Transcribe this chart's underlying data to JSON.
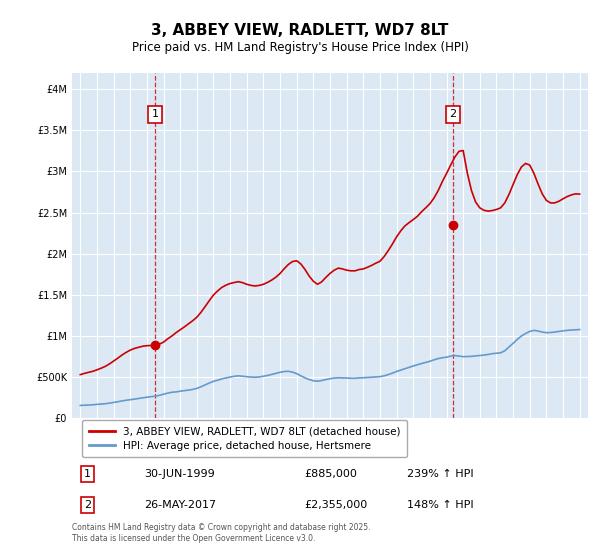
{
  "title": "3, ABBEY VIEW, RADLETT, WD7 8LT",
  "subtitle": "Price paid vs. HM Land Registry's House Price Index (HPI)",
  "bg_color": "#dce9f5",
  "plot_bg_color": "#dce9f5",
  "red_line_color": "#cc0000",
  "blue_line_color": "#6699cc",
  "ylabel_ticks": [
    "£0",
    "£500K",
    "£1M",
    "£1.5M",
    "£2M",
    "£2.5M",
    "£3M",
    "£3.5M",
    "£4M"
  ],
  "ylabel_values": [
    0,
    500000,
    1000000,
    1500000,
    2000000,
    2500000,
    3000000,
    3500000,
    4000000
  ],
  "xlim": [
    1994.5,
    2025.5
  ],
  "ylim": [
    0,
    4200000
  ],
  "marker1_x": 1999.5,
  "marker1_y": 885000,
  "marker1_label": "1",
  "marker2_x": 2017.4,
  "marker2_y": 2355000,
  "marker2_label": "2",
  "vline1_x": 1999.5,
  "vline2_x": 2017.4,
  "legend_entry1": "3, ABBEY VIEW, RADLETT, WD7 8LT (detached house)",
  "legend_entry2": "HPI: Average price, detached house, Hertsmere",
  "table_rows": [
    {
      "num": "1",
      "date": "30-JUN-1999",
      "price": "£885,000",
      "change": "239% ↑ HPI"
    },
    {
      "num": "2",
      "date": "26-MAY-2017",
      "price": "£2,355,000",
      "change": "148% ↑ HPI"
    }
  ],
  "footnote": "Contains HM Land Registry data © Crown copyright and database right 2025.\nThis data is licensed under the Open Government Licence v3.0.",
  "hpi_data_x": [
    1995.0,
    1995.25,
    1995.5,
    1995.75,
    1996.0,
    1996.25,
    1996.5,
    1996.75,
    1997.0,
    1997.25,
    1997.5,
    1997.75,
    1998.0,
    1998.25,
    1998.5,
    1998.75,
    1999.0,
    1999.25,
    1999.5,
    1999.75,
    2000.0,
    2000.25,
    2000.5,
    2000.75,
    2001.0,
    2001.25,
    2001.5,
    2001.75,
    2002.0,
    2002.25,
    2002.5,
    2002.75,
    2003.0,
    2003.25,
    2003.5,
    2003.75,
    2004.0,
    2004.25,
    2004.5,
    2004.75,
    2005.0,
    2005.25,
    2005.5,
    2005.75,
    2006.0,
    2006.25,
    2006.5,
    2006.75,
    2007.0,
    2007.25,
    2007.5,
    2007.75,
    2008.0,
    2008.25,
    2008.5,
    2008.75,
    2009.0,
    2009.25,
    2009.5,
    2009.75,
    2010.0,
    2010.25,
    2010.5,
    2010.75,
    2011.0,
    2011.25,
    2011.5,
    2011.75,
    2012.0,
    2012.25,
    2012.5,
    2012.75,
    2013.0,
    2013.25,
    2013.5,
    2013.75,
    2014.0,
    2014.25,
    2014.5,
    2014.75,
    2015.0,
    2015.25,
    2015.5,
    2015.75,
    2016.0,
    2016.25,
    2016.5,
    2016.75,
    2017.0,
    2017.25,
    2017.5,
    2017.75,
    2018.0,
    2018.25,
    2018.5,
    2018.75,
    2019.0,
    2019.25,
    2019.5,
    2019.75,
    2020.0,
    2020.25,
    2020.5,
    2020.75,
    2021.0,
    2021.25,
    2021.5,
    2021.75,
    2022.0,
    2022.25,
    2022.5,
    2022.75,
    2023.0,
    2023.25,
    2023.5,
    2023.75,
    2024.0,
    2024.25,
    2024.5,
    2024.75,
    2025.0
  ],
  "hpi_data_y": [
    155000,
    158000,
    160000,
    163000,
    168000,
    172000,
    176000,
    183000,
    192000,
    200000,
    210000,
    218000,
    225000,
    232000,
    240000,
    248000,
    255000,
    262000,
    268000,
    278000,
    292000,
    305000,
    315000,
    320000,
    328000,
    335000,
    342000,
    350000,
    362000,
    382000,
    405000,
    428000,
    448000,
    462000,
    478000,
    490000,
    500000,
    510000,
    515000,
    510000,
    505000,
    500000,
    498000,
    502000,
    510000,
    520000,
    532000,
    545000,
    558000,
    568000,
    570000,
    560000,
    542000,
    515000,
    490000,
    470000,
    455000,
    450000,
    458000,
    470000,
    480000,
    488000,
    492000,
    490000,
    488000,
    486000,
    485000,
    490000,
    492000,
    495000,
    498000,
    502000,
    505000,
    515000,
    530000,
    548000,
    568000,
    585000,
    602000,
    618000,
    635000,
    650000,
    665000,
    678000,
    692000,
    710000,
    725000,
    735000,
    742000,
    755000,
    762000,
    755000,
    748000,
    750000,
    752000,
    758000,
    762000,
    768000,
    775000,
    785000,
    790000,
    795000,
    820000,
    865000,
    910000,
    958000,
    1000000,
    1030000,
    1055000,
    1068000,
    1060000,
    1048000,
    1040000,
    1042000,
    1048000,
    1055000,
    1062000,
    1068000,
    1072000,
    1075000,
    1078000
  ],
  "price_data_x": [
    1995.0,
    1995.25,
    1995.5,
    1995.75,
    1996.0,
    1996.25,
    1996.5,
    1996.75,
    1997.0,
    1997.25,
    1997.5,
    1997.75,
    1998.0,
    1998.25,
    1998.5,
    1998.75,
    1999.0,
    1999.25,
    1999.5,
    1999.75,
    2000.0,
    2000.25,
    2000.5,
    2000.75,
    2001.0,
    2001.25,
    2001.5,
    2001.75,
    2002.0,
    2002.25,
    2002.5,
    2002.75,
    2003.0,
    2003.25,
    2003.5,
    2003.75,
    2004.0,
    2004.25,
    2004.5,
    2004.75,
    2005.0,
    2005.25,
    2005.5,
    2005.75,
    2006.0,
    2006.25,
    2006.5,
    2006.75,
    2007.0,
    2007.25,
    2007.5,
    2007.75,
    2008.0,
    2008.25,
    2008.5,
    2008.75,
    2009.0,
    2009.25,
    2009.5,
    2009.75,
    2010.0,
    2010.25,
    2010.5,
    2010.75,
    2011.0,
    2011.25,
    2011.5,
    2011.75,
    2012.0,
    2012.25,
    2012.5,
    2012.75,
    2013.0,
    2013.25,
    2013.5,
    2013.75,
    2014.0,
    2014.25,
    2014.5,
    2014.75,
    2015.0,
    2015.25,
    2015.5,
    2015.75,
    2016.0,
    2016.25,
    2016.5,
    2016.75,
    2017.0,
    2017.25,
    2017.5,
    2017.75,
    2018.0,
    2018.25,
    2018.5,
    2018.75,
    2019.0,
    2019.25,
    2019.5,
    2019.75,
    2020.0,
    2020.25,
    2020.5,
    2020.75,
    2021.0,
    2021.25,
    2021.5,
    2021.75,
    2022.0,
    2022.25,
    2022.5,
    2022.75,
    2023.0,
    2023.25,
    2023.5,
    2023.75,
    2024.0,
    2024.25,
    2024.5,
    2024.75,
    2025.0
  ],
  "price_data_y": [
    530000,
    545000,
    558000,
    570000,
    588000,
    608000,
    630000,
    660000,
    695000,
    730000,
    768000,
    800000,
    828000,
    848000,
    862000,
    875000,
    882000,
    884000,
    885000,
    900000,
    925000,
    965000,
    1000000,
    1040000,
    1075000,
    1110000,
    1148000,
    1185000,
    1228000,
    1288000,
    1358000,
    1430000,
    1498000,
    1548000,
    1590000,
    1618000,
    1638000,
    1650000,
    1660000,
    1648000,
    1628000,
    1615000,
    1608000,
    1615000,
    1628000,
    1652000,
    1680000,
    1715000,
    1760000,
    1818000,
    1870000,
    1905000,
    1915000,
    1875000,
    1808000,
    1728000,
    1665000,
    1628000,
    1658000,
    1712000,
    1760000,
    1800000,
    1825000,
    1815000,
    1800000,
    1792000,
    1792000,
    1808000,
    1815000,
    1835000,
    1858000,
    1885000,
    1908000,
    1965000,
    2038000,
    2118000,
    2205000,
    2278000,
    2338000,
    2378000,
    2415000,
    2455000,
    2510000,
    2558000,
    2608000,
    2678000,
    2768000,
    2878000,
    2975000,
    3078000,
    3175000,
    3245000,
    3255000,
    2980000,
    2768000,
    2628000,
    2558000,
    2528000,
    2518000,
    2525000,
    2538000,
    2558000,
    2618000,
    2720000,
    2842000,
    2962000,
    3055000,
    3098000,
    3078000,
    2978000,
    2848000,
    2728000,
    2648000,
    2618000,
    2618000,
    2638000,
    2668000,
    2695000,
    2715000,
    2728000,
    2725000
  ]
}
